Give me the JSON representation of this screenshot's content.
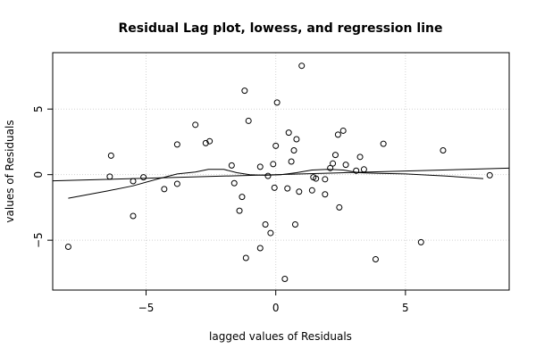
{
  "chart_data": {
    "type": "scatter",
    "title": "Residual Lag plot, lowess, and regression line",
    "xlabel": "lagged values of Residuals",
    "ylabel": "values of Residuals",
    "xlim": [
      -8.6,
      9.0
    ],
    "ylim": [
      -8.8,
      9.3
    ],
    "xticks": [
      -5,
      0,
      5
    ],
    "yticks": [
      -5,
      0,
      5
    ],
    "grid": true,
    "points": [
      {
        "x": -8.0,
        "y": -5.5
      },
      {
        "x": -6.4,
        "y": -0.15
      },
      {
        "x": -6.35,
        "y": 1.45
      },
      {
        "x": -5.5,
        "y": -0.5
      },
      {
        "x": -5.5,
        "y": -3.15
      },
      {
        "x": -5.1,
        "y": -0.2
      },
      {
        "x": -4.3,
        "y": -1.1
      },
      {
        "x": -3.8,
        "y": 2.3
      },
      {
        "x": -3.8,
        "y": -0.7
      },
      {
        "x": -3.1,
        "y": 3.8
      },
      {
        "x": -2.7,
        "y": 2.4
      },
      {
        "x": -2.55,
        "y": 2.55
      },
      {
        "x": -1.7,
        "y": 0.7
      },
      {
        "x": -1.6,
        "y": -0.65
      },
      {
        "x": -1.4,
        "y": -2.75
      },
      {
        "x": -1.3,
        "y": -1.7
      },
      {
        "x": -1.2,
        "y": 6.4
      },
      {
        "x": -1.15,
        "y": -6.35
      },
      {
        "x": -1.05,
        "y": 4.1
      },
      {
        "x": -0.6,
        "y": 0.6
      },
      {
        "x": -0.6,
        "y": -5.6
      },
      {
        "x": -0.4,
        "y": -3.8
      },
      {
        "x": -0.3,
        "y": -0.1
      },
      {
        "x": -0.2,
        "y": -4.45
      },
      {
        "x": -0.1,
        "y": 0.8
      },
      {
        "x": -0.05,
        "y": -1.0
      },
      {
        "x": 0.0,
        "y": 2.2
      },
      {
        "x": 0.05,
        "y": 5.5
      },
      {
        "x": 0.35,
        "y": -7.95
      },
      {
        "x": 0.45,
        "y": -1.05
      },
      {
        "x": 0.5,
        "y": 3.2
      },
      {
        "x": 0.6,
        "y": 1.0
      },
      {
        "x": 0.7,
        "y": 1.85
      },
      {
        "x": 0.75,
        "y": -3.8
      },
      {
        "x": 0.8,
        "y": 2.7
      },
      {
        "x": 0.9,
        "y": -1.3
      },
      {
        "x": 1.0,
        "y": 8.3
      },
      {
        "x": 1.4,
        "y": -1.2
      },
      {
        "x": 1.45,
        "y": -0.2
      },
      {
        "x": 1.55,
        "y": -0.3
      },
      {
        "x": 1.9,
        "y": -0.35
      },
      {
        "x": 1.9,
        "y": -1.5
      },
      {
        "x": 2.1,
        "y": 0.5
      },
      {
        "x": 2.2,
        "y": 0.85
      },
      {
        "x": 2.3,
        "y": 1.5
      },
      {
        "x": 2.4,
        "y": 3.05
      },
      {
        "x": 2.45,
        "y": -2.5
      },
      {
        "x": 2.6,
        "y": 3.35
      },
      {
        "x": 2.7,
        "y": 0.75
      },
      {
        "x": 3.1,
        "y": 0.3
      },
      {
        "x": 3.25,
        "y": 1.35
      },
      {
        "x": 3.4,
        "y": 0.4
      },
      {
        "x": 3.85,
        "y": -6.45
      },
      {
        "x": 4.15,
        "y": 2.35
      },
      {
        "x": 5.6,
        "y": -5.15
      },
      {
        "x": 6.45,
        "y": 1.85
      },
      {
        "x": 8.25,
        "y": -0.05
      }
    ],
    "regression_line": {
      "intercept": 0.0,
      "slope": 0.055
    },
    "lowess": [
      {
        "x": -8.0,
        "y": -1.8
      },
      {
        "x": -6.5,
        "y": -1.25
      },
      {
        "x": -5.5,
        "y": -0.85
      },
      {
        "x": -4.5,
        "y": -0.3
      },
      {
        "x": -3.8,
        "y": 0.05
      },
      {
        "x": -3.1,
        "y": 0.2
      },
      {
        "x": -2.6,
        "y": 0.4
      },
      {
        "x": -2.0,
        "y": 0.4
      },
      {
        "x": -1.5,
        "y": 0.15
      },
      {
        "x": -1.0,
        "y": 0.0
      },
      {
        "x": -0.4,
        "y": -0.05
      },
      {
        "x": 0.2,
        "y": 0.0
      },
      {
        "x": 0.8,
        "y": 0.15
      },
      {
        "x": 1.4,
        "y": 0.35
      },
      {
        "x": 2.0,
        "y": 0.4
      },
      {
        "x": 2.6,
        "y": 0.35
      },
      {
        "x": 3.2,
        "y": 0.15
      },
      {
        "x": 4.0,
        "y": 0.1
      },
      {
        "x": 5.0,
        "y": 0.05
      },
      {
        "x": 6.5,
        "y": -0.1
      },
      {
        "x": 8.0,
        "y": -0.3
      }
    ]
  }
}
